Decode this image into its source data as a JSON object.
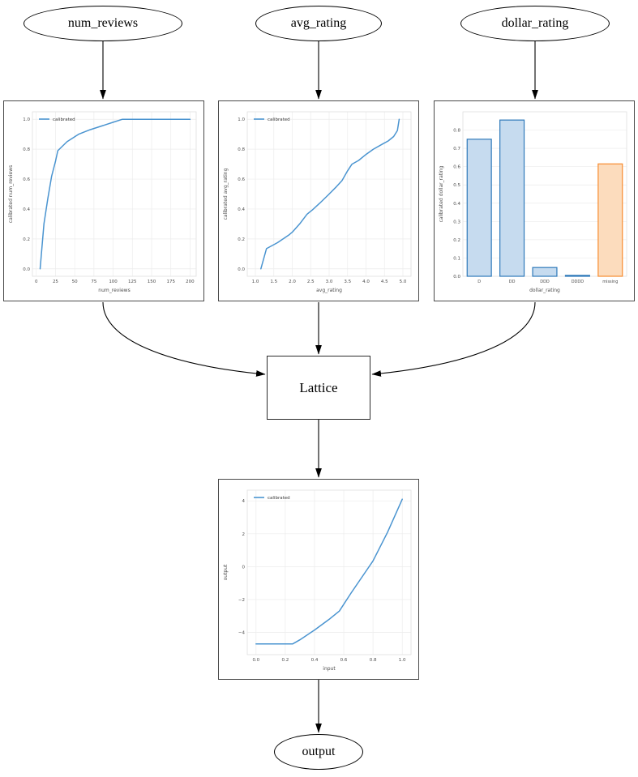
{
  "graph": {
    "input_nodes": {
      "num_reviews": {
        "label": "num_reviews"
      },
      "avg_rating": {
        "label": "avg_rating"
      },
      "dollar_rating": {
        "label": "dollar_rating"
      }
    },
    "lattice_node": {
      "label": "Lattice"
    },
    "output_node": {
      "label": "output"
    }
  },
  "colors": {
    "line_blue": "#4a94d0",
    "bar_blue_fill": "#c6dbef",
    "bar_blue_edge": "#2e79ba",
    "bar_orange_fill": "#fcdcbd",
    "bar_orange_edge": "#f78b2e",
    "grid": "#ececec",
    "axes_frame": "#e0e0e0",
    "tick_text": "#4d4d4d",
    "edge_black": "#000000"
  },
  "chart_data": [
    {
      "type": "line",
      "title": "",
      "xlabel": "num_reviews",
      "ylabel": "calibrated num_reviews",
      "legend": {
        "entries": [
          "calibrated"
        ],
        "position": "upper left"
      },
      "grid": true,
      "xlim": [
        -5,
        208
      ],
      "ylim": [
        -0.05,
        1.05
      ],
      "xticks": {
        "values": [
          0,
          25,
          50,
          75,
          100,
          125,
          150,
          175,
          200
        ],
        "labels": [
          "0",
          "25",
          "50",
          "75",
          "100",
          "125",
          "150",
          "175",
          "200"
        ]
      },
      "yticks": {
        "values": [
          0,
          0.2,
          0.4,
          0.6,
          0.8,
          1.0
        ],
        "labels": [
          "0.0",
          "0.2",
          "0.4",
          "0.6",
          "0.8",
          "1.0"
        ]
      },
      "series": [
        {
          "name": "calibrated",
          "color": "#4a94d0",
          "points": [
            [
              5,
              0.0
            ],
            [
              10,
              0.3
            ],
            [
              15,
              0.47
            ],
            [
              20,
              0.62
            ],
            [
              25,
              0.72
            ],
            [
              28,
              0.79
            ],
            [
              40,
              0.85
            ],
            [
              55,
              0.9
            ],
            [
              70,
              0.93
            ],
            [
              85,
              0.955
            ],
            [
              100,
              0.98
            ],
            [
              112,
              1.0
            ],
            [
              200,
              1.0
            ]
          ]
        }
      ]
    },
    {
      "type": "line",
      "title": "",
      "xlabel": "avg_rating",
      "ylabel": "calibrated avg_rating",
      "legend": {
        "entries": [
          "calibrated"
        ],
        "position": "upper left"
      },
      "grid": true,
      "xlim": [
        0.78,
        5.22
      ],
      "ylim": [
        -0.05,
        1.05
      ],
      "xticks": {
        "values": [
          1.0,
          1.5,
          2.0,
          2.5,
          3.0,
          3.5,
          4.0,
          4.5,
          5.0
        ],
        "labels": [
          "1.0",
          "1.5",
          "2.0",
          "2.5",
          "3.0",
          "3.5",
          "4.0",
          "4.5",
          "5.0"
        ]
      },
      "yticks": {
        "values": [
          0,
          0.2,
          0.4,
          0.6,
          0.8,
          1.0
        ],
        "labels": [
          "0.0",
          "0.2",
          "0.4",
          "0.6",
          "0.8",
          "1.0"
        ]
      },
      "series": [
        {
          "name": "calibrated",
          "color": "#4a94d0",
          "points": [
            [
              1.15,
              0.0
            ],
            [
              1.3,
              0.135
            ],
            [
              1.6,
              0.175
            ],
            [
              1.9,
              0.225
            ],
            [
              2.0,
              0.245
            ],
            [
              2.2,
              0.3
            ],
            [
              2.4,
              0.365
            ],
            [
              2.55,
              0.395
            ],
            [
              2.75,
              0.44
            ],
            [
              3.0,
              0.5
            ],
            [
              3.2,
              0.55
            ],
            [
              3.35,
              0.59
            ],
            [
              3.5,
              0.655
            ],
            [
              3.62,
              0.7
            ],
            [
              3.8,
              0.725
            ],
            [
              4.0,
              0.765
            ],
            [
              4.2,
              0.8
            ],
            [
              4.45,
              0.835
            ],
            [
              4.6,
              0.855
            ],
            [
              4.75,
              0.885
            ],
            [
              4.85,
              0.925
            ],
            [
              4.9,
              1.0
            ]
          ]
        }
      ]
    },
    {
      "type": "bar",
      "title": "",
      "xlabel": "dollar_rating",
      "ylabel": "calibrated dollar_rating",
      "grid": true,
      "categories": [
        "D",
        "DD",
        "DDD",
        "DDDD",
        "missing"
      ],
      "values": [
        0.75,
        0.855,
        0.048,
        0.005,
        0.615
      ],
      "bar_fill": [
        "#c6dbef",
        "#c6dbef",
        "#c6dbef",
        "#c6dbef",
        "#fcdcbd"
      ],
      "bar_edge": [
        "#2e79ba",
        "#2e79ba",
        "#2e79ba",
        "#2e79ba",
        "#f78b2e"
      ],
      "ylim": [
        0,
        0.9
      ],
      "yticks": {
        "values": [
          0,
          0.1,
          0.2,
          0.3,
          0.4,
          0.5,
          0.6,
          0.7,
          0.8
        ],
        "labels": [
          "0.0",
          "0.1",
          "0.2",
          "0.3",
          "0.4",
          "0.5",
          "0.6",
          "0.7",
          "0.8"
        ]
      }
    },
    {
      "type": "line",
      "title": "",
      "xlabel": "input",
      "ylabel": "output",
      "legend": {
        "entries": [
          "calibrated"
        ],
        "position": "upper left"
      },
      "grid": true,
      "xlim": [
        -0.06,
        1.06
      ],
      "ylim": [
        -5.35,
        4.65
      ],
      "xticks": {
        "values": [
          0.0,
          0.2,
          0.4,
          0.6,
          0.8,
          1.0
        ],
        "labels": [
          "0.0",
          "0.2",
          "0.4",
          "0.6",
          "0.8",
          "1.0"
        ]
      },
      "yticks": {
        "values": [
          -4,
          -2,
          0,
          2,
          4
        ],
        "labels": [
          "−4",
          "−2",
          "0",
          "2",
          "4"
        ]
      },
      "series": [
        {
          "name": "calibrated",
          "color": "#4a94d0",
          "points": [
            [
              0.0,
              -4.7
            ],
            [
              0.25,
              -4.7
            ],
            [
              0.3,
              -4.45
            ],
            [
              0.4,
              -3.85
            ],
            [
              0.5,
              -3.2
            ],
            [
              0.57,
              -2.7
            ],
            [
              0.65,
              -1.6
            ],
            [
              0.75,
              -0.3
            ],
            [
              0.8,
              0.35
            ],
            [
              0.9,
              2.1
            ],
            [
              1.0,
              4.1
            ]
          ]
        }
      ]
    }
  ]
}
